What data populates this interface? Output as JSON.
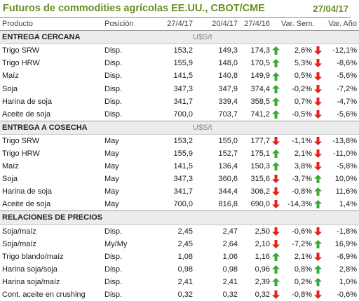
{
  "header": {
    "title": "Futuros de commodities agrícolas EE.UU., CBOT/CME",
    "date": "27/04/17"
  },
  "columns": {
    "producto": "Producto",
    "posicion": "Posición",
    "d1": "27/4/17",
    "d2": "20/4/17",
    "d3": "27/4/16",
    "var_sem": "Var. Sem.",
    "var_anio": "Var. Año"
  },
  "colors": {
    "accent": "#6b8e23",
    "up": "#3aa935",
    "down": "#e2231a",
    "section_bg": "#ececec"
  },
  "sections": [
    {
      "title": "ENTREGA CERCANA",
      "unit": "U$S/t",
      "rows": [
        {
          "prod": "Trigo SRW",
          "pos": "Disp.",
          "v1": "153,2",
          "v2": "149,3",
          "v3": "174,3",
          "a3": "up",
          "ws": "2,6%",
          "aw": "down",
          "ya": "-12,1%"
        },
        {
          "prod": "Trigo HRW",
          "pos": "Disp.",
          "v1": "155,9",
          "v2": "148,0",
          "v3": "170,5",
          "a3": "up",
          "ws": "5,3%",
          "aw": "down",
          "ya": "-8,6%"
        },
        {
          "prod": "Maíz",
          "pos": "Disp.",
          "v1": "141,5",
          "v2": "140,8",
          "v3": "149,9",
          "a3": "up",
          "ws": "0,5%",
          "aw": "down",
          "ya": "-5,6%"
        },
        {
          "prod": "Soja",
          "pos": "Disp.",
          "v1": "347,3",
          "v2": "347,9",
          "v3": "374,4",
          "a3": "up",
          "ws": "-0,2%",
          "aw": "down",
          "ya": "-7,2%"
        },
        {
          "prod": "Harina de soja",
          "pos": "Disp.",
          "v1": "341,7",
          "v2": "339,4",
          "v3": "358,5",
          "a3": "up",
          "ws": "0,7%",
          "aw": "down",
          "ya": "-4,7%"
        },
        {
          "prod": "Aceite de soja",
          "pos": "Disp.",
          "v1": "700,0",
          "v2": "703,7",
          "v3": "741,2",
          "a3": "up",
          "ws": "-0,5%",
          "aw": "down",
          "ya": "-5,6%"
        }
      ]
    },
    {
      "title": "ENTREGA A COSECHA",
      "unit": "U$S/t",
      "rows": [
        {
          "prod": "Trigo SRW",
          "pos": "May",
          "v1": "153,2",
          "v2": "155,0",
          "v3": "177,7",
          "a3": "down",
          "ws": "-1,1%",
          "aw": "down",
          "ya": "-13,8%"
        },
        {
          "prod": "Trigo HRW",
          "pos": "May",
          "v1": "155,9",
          "v2": "152,7",
          "v3": "175,1",
          "a3": "up",
          "ws": "2,1%",
          "aw": "down",
          "ya": "-11,0%"
        },
        {
          "prod": "Maíz",
          "pos": "May",
          "v1": "141,5",
          "v2": "136,4",
          "v3": "150,3",
          "a3": "up",
          "ws": "3,8%",
          "aw": "down",
          "ya": "-5,8%"
        },
        {
          "prod": "Soja",
          "pos": "May",
          "v1": "347,3",
          "v2": "360,6",
          "v3": "315,6",
          "a3": "down",
          "ws": "-3,7%",
          "aw": "up",
          "ya": "10,0%"
        },
        {
          "prod": "Harina de soja",
          "pos": "May",
          "v1": "341,7",
          "v2": "344,4",
          "v3": "306,2",
          "a3": "down",
          "ws": "-0,8%",
          "aw": "up",
          "ya": "11,6%"
        },
        {
          "prod": "Aceite de soja",
          "pos": "May",
          "v1": "700,0",
          "v2": "816,8",
          "v3": "690,0",
          "a3": "down",
          "ws": "-14,3%",
          "aw": "up",
          "ya": "1,4%"
        }
      ]
    },
    {
      "title": "RELACIONES DE PRECIOS",
      "unit": "",
      "rows": [
        {
          "prod": "Soja/maíz",
          "pos": "Disp.",
          "v1": "2,45",
          "v2": "2,47",
          "v3": "2,50",
          "a3": "down",
          "ws": "-0,6%",
          "aw": "down",
          "ya": "-1,8%"
        },
        {
          "prod": "Soja/maíz",
          "pos": "My/My",
          "v1": "2,45",
          "v2": "2,64",
          "v3": "2,10",
          "a3": "down",
          "ws": "-7,2%",
          "aw": "up",
          "ya": "16,9%"
        },
        {
          "prod": "Trigo blando/maíz",
          "pos": "Disp.",
          "v1": "1,08",
          "v2": "1,06",
          "v3": "1,16",
          "a3": "up",
          "ws": "2,1%",
          "aw": "down",
          "ya": "-6,9%"
        },
        {
          "prod": "Harina soja/soja",
          "pos": "Disp.",
          "v1": "0,98",
          "v2": "0,98",
          "v3": "0,96",
          "a3": "up",
          "ws": "0,8%",
          "aw": "up",
          "ya": "2,8%"
        },
        {
          "prod": "Harina soja/maíz",
          "pos": "Disp.",
          "v1": "2,41",
          "v2": "2,41",
          "v3": "2,39",
          "a3": "up",
          "ws": "0,2%",
          "aw": "up",
          "ya": "1,0%"
        },
        {
          "prod": "Cont. aceite en crushing",
          "pos": "Disp.",
          "v1": "0,32",
          "v2": "0,32",
          "v3": "0,32",
          "a3": "down",
          "ws": "-0,8%",
          "aw": "down",
          "ya": "-0,6%"
        }
      ]
    }
  ]
}
